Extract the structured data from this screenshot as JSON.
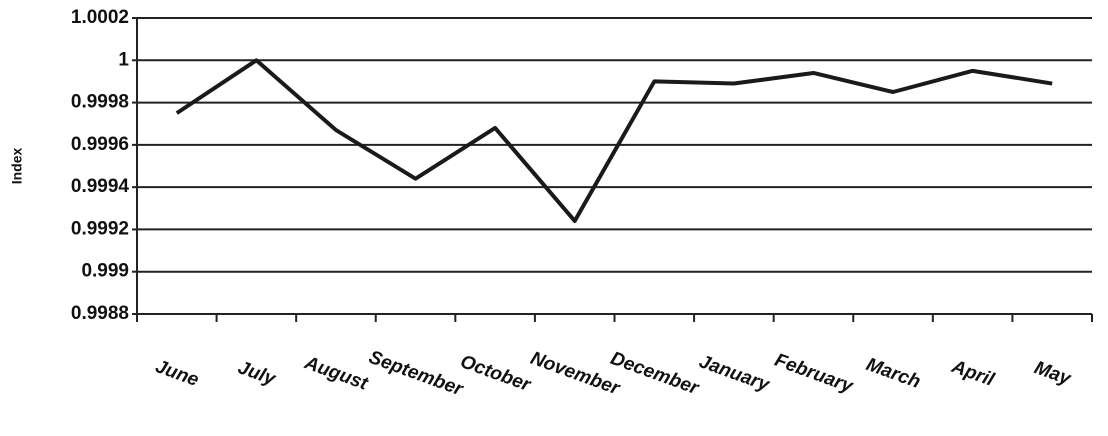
{
  "chart_data": {
    "type": "line",
    "y_label": "Index",
    "categories": [
      "June",
      "July",
      "August",
      "September",
      "October",
      "November",
      "December",
      "January",
      "February",
      "March",
      "April",
      "May"
    ],
    "values": [
      0.99975,
      1.0,
      0.99967,
      0.99944,
      0.99968,
      0.99924,
      0.9999,
      0.99989,
      0.99994,
      0.99985,
      0.99995,
      0.99989
    ],
    "color": "#1a1a1a",
    "ylim": [
      0.9988,
      1.0002
    ],
    "yticks": [
      0.9988,
      0.999,
      0.9992,
      0.9994,
      0.9996,
      0.9998,
      1,
      1.0002
    ],
    "grid": true
  }
}
